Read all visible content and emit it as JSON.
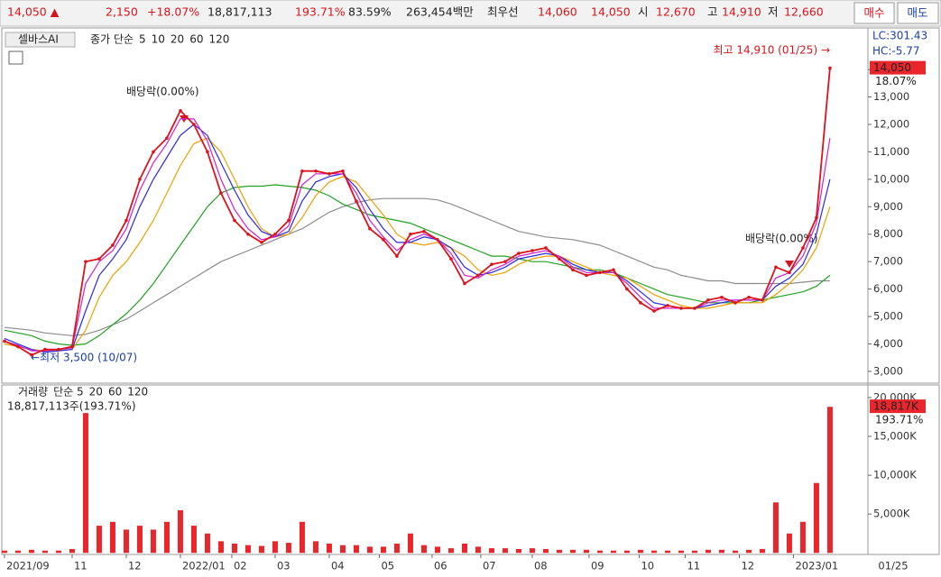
{
  "header": {
    "price": "14,050 ▲",
    "change": "2,150",
    "change_pct": "+18.07%",
    "volume": "18,817,113",
    "volume_ratio": "193.71%",
    "turnover": "83.59%",
    "amount": "263,454백만",
    "best_label": "최우선",
    "ask": "14,060",
    "bid": "14,050",
    "open_label": "시",
    "open": "12,670",
    "high_label": "고",
    "high": "14,910",
    "low_label": "저",
    "low": "12,660",
    "buy": "매수",
    "sell": "매도"
  },
  "chart_data": [
    {
      "type": "line",
      "name": "셀바스AI",
      "legend_prefix": "종가 단순",
      "color": "#d9141c",
      "xlim": [
        -0.13,
        63.67
      ],
      "ylim": [
        2570,
        15450
      ],
      "yticks": [
        {
          "value": 3000,
          "label": "3,000"
        },
        {
          "value": 4000,
          "label": "4,000"
        },
        {
          "value": 5000,
          "label": "5,000"
        },
        {
          "value": 6000,
          "label": "6,000"
        },
        {
          "value": 7000,
          "label": "7,000"
        },
        {
          "value": 8000,
          "label": "8,000"
        },
        {
          "value": 9000,
          "label": "9,000"
        },
        {
          "value": 10000,
          "label": "10,000"
        },
        {
          "value": 11000,
          "label": "11,000"
        },
        {
          "value": 12000,
          "label": "12,000"
        },
        {
          "value": 13000,
          "label": "13,000"
        },
        {
          "value": 14000,
          "label": "14,000"
        }
      ],
      "x": [
        0,
        1,
        2,
        3,
        4,
        5,
        6,
        7,
        8,
        9,
        10,
        11,
        12,
        13,
        14,
        15,
        16,
        17,
        18,
        19,
        20,
        21,
        22,
        23,
        24,
        25,
        26,
        27,
        28,
        29,
        30,
        31,
        32,
        33,
        34,
        35,
        36,
        37,
        38,
        39,
        40,
        41,
        42,
        43,
        44,
        45,
        46,
        47,
        48,
        49,
        50,
        51,
        52,
        53,
        54,
        55,
        56,
        57,
        58,
        59,
        60,
        61
      ],
      "values": [
        4100,
        3900,
        3600,
        3800,
        3800,
        3900,
        7000,
        7100,
        7600,
        8500,
        10000,
        11000,
        11500,
        12500,
        12000,
        11000,
        9500,
        8500,
        8000,
        7700,
        8000,
        8500,
        10300,
        10300,
        10200,
        10300,
        9200,
        8200,
        7800,
        7200,
        8000,
        8100,
        7800,
        7100,
        6200,
        6500,
        6900,
        7000,
        7300,
        7400,
        7500,
        7100,
        6700,
        6500,
        6600,
        6700,
        6000,
        5500,
        5200,
        5400,
        5300,
        5300,
        5600,
        5700,
        5500,
        5700,
        5600,
        6800,
        6600,
        7500,
        8600,
        14050
      ],
      "series": [
        {
          "name": "5",
          "color": "#d61fd0",
          "values": [
            4100,
            3950,
            3750,
            3750,
            3800,
            3850,
            6200,
            7000,
            7400,
            8200,
            9600,
            10600,
            11300,
            12200,
            12200,
            11400,
            10000,
            8900,
            8200,
            7800,
            7900,
            8300,
            9800,
            10200,
            10200,
            10200,
            9500,
            8500,
            7900,
            7400,
            7800,
            8000,
            7800,
            7300,
            6500,
            6400,
            6700,
            6900,
            7200,
            7300,
            7400,
            7200,
            6800,
            6600,
            6600,
            6600,
            6200,
            5700,
            5300,
            5300,
            5300,
            5300,
            5500,
            5600,
            5600,
            5600,
            5600,
            6400,
            6600,
            7200,
            8400,
            11500
          ]
        },
        {
          "name": "10",
          "color": "#2a2ae0",
          "values": [
            4200,
            4000,
            3800,
            3700,
            3750,
            3800,
            5200,
            6500,
            7100,
            7800,
            9000,
            10000,
            10800,
            11600,
            12000,
            11600,
            10600,
            9600,
            8700,
            8100,
            7900,
            8100,
            9200,
            9900,
            10100,
            10200,
            9700,
            8900,
            8200,
            7700,
            7700,
            7900,
            7800,
            7500,
            6800,
            6500,
            6600,
            6800,
            7100,
            7200,
            7300,
            7200,
            6900,
            6700,
            6600,
            6600,
            6300,
            5900,
            5500,
            5400,
            5300,
            5300,
            5400,
            5500,
            5600,
            5600,
            5600,
            6100,
            6400,
            6900,
            8000,
            10000
          ]
        },
        {
          "name": "20",
          "color": "#f0a000",
          "values": [
            4000,
            3900,
            3800,
            3750,
            3750,
            3800,
            4500,
            5700,
            6500,
            7000,
            7700,
            8500,
            9500,
            10500,
            11300,
            11500,
            11000,
            10000,
            9000,
            8200,
            7900,
            8000,
            8600,
            9400,
            9900,
            10100,
            9900,
            9300,
            8700,
            8000,
            7700,
            7600,
            7700,
            7500,
            7200,
            6700,
            6500,
            6600,
            6900,
            7100,
            7200,
            7200,
            7000,
            6800,
            6600,
            6500,
            6400,
            6100,
            5800,
            5600,
            5400,
            5300,
            5300,
            5400,
            5500,
            5500,
            5500,
            5800,
            6200,
            6700,
            7500,
            9000
          ]
        },
        {
          "name": "60",
          "color": "#22a022",
          "values": [
            4500,
            4400,
            4300,
            4100,
            4000,
            3950,
            4000,
            4300,
            4700,
            5100,
            5600,
            6200,
            6900,
            7600,
            8300,
            9000,
            9500,
            9700,
            9750,
            9750,
            9800,
            9750,
            9700,
            9600,
            9400,
            9100,
            8900,
            8700,
            8600,
            8500,
            8400,
            8200,
            8000,
            7800,
            7600,
            7400,
            7200,
            7200,
            7100,
            7000,
            7000,
            6900,
            6800,
            6700,
            6700,
            6600,
            6400,
            6200,
            6000,
            5800,
            5700,
            5600,
            5500,
            5500,
            5500,
            5500,
            5600,
            5700,
            5800,
            5900,
            6100,
            6500
          ]
        },
        {
          "name": "120",
          "color": "#8c8c8c",
          "values": [
            4600,
            4550,
            4500,
            4400,
            4350,
            4300,
            4350,
            4500,
            4700,
            4900,
            5200,
            5500,
            5800,
            6100,
            6400,
            6700,
            7000,
            7200,
            7400,
            7600,
            7800,
            8000,
            8200,
            8500,
            8800,
            9000,
            9150,
            9250,
            9300,
            9300,
            9300,
            9300,
            9250,
            9100,
            8900,
            8700,
            8500,
            8300,
            8100,
            8000,
            7900,
            7850,
            7800,
            7700,
            7600,
            7400,
            7200,
            7000,
            6800,
            6700,
            6500,
            6400,
            6300,
            6300,
            6200,
            6200,
            6200,
            6200,
            6200,
            6250,
            6300,
            6300
          ]
        }
      ],
      "annotations": [
        "배당락(0.00%)",
        "배당락(0.00%)",
        "최고 14,910 (01/25) →",
        "←최저 3,500 (10/07)"
      ],
      "lc": "LC:301.43",
      "hc": "HC:-5.77",
      "last": {
        "value": 14050,
        "label": "14,050"
      },
      "last_change": "18.07%"
    },
    {
      "type": "bar",
      "color": "#e8262b",
      "info": "18,817,113주(193.71%)",
      "legend": [
        {
          "label": "거래량",
          "color": "#3a6fd8"
        },
        {
          "label": "단순 5",
          "color": "#d61fd0"
        },
        {
          "label": "20",
          "color": "#f0a000"
        },
        {
          "label": "60",
          "color": "#22a022"
        },
        {
          "label": "120",
          "color": "#8c8c8c"
        }
      ],
      "xlim": [
        -0.13,
        63.67
      ],
      "ylim": [
        -200,
        21500
      ],
      "yticks": [
        {
          "value": 5000,
          "label": "5,000K"
        },
        {
          "value": 10000,
          "label": "10,000K"
        },
        {
          "value": 15000,
          "label": "15,000K"
        },
        {
          "value": 20000,
          "label": "20,000K"
        }
      ],
      "x": [
        0,
        1,
        2,
        3,
        4,
        5,
        6,
        7,
        8,
        9,
        10,
        11,
        12,
        13,
        14,
        15,
        16,
        17,
        18,
        19,
        20,
        21,
        22,
        23,
        24,
        25,
        26,
        27,
        28,
        29,
        30,
        31,
        32,
        33,
        34,
        35,
        36,
        37,
        38,
        39,
        40,
        41,
        42,
        43,
        44,
        45,
        46,
        47,
        48,
        49,
        50,
        51,
        52,
        53,
        54,
        55,
        56,
        57,
        58,
        59,
        60,
        61
      ],
      "values": [
        300,
        300,
        400,
        300,
        300,
        500,
        18000,
        3500,
        4000,
        3000,
        3500,
        3000,
        4000,
        5500,
        3500,
        2500,
        1500,
        1200,
        1000,
        900,
        1500,
        1300,
        4000,
        1500,
        1200,
        1000,
        1000,
        800,
        800,
        1200,
        2500,
        1000,
        800,
        600,
        1200,
        800,
        600,
        600,
        500,
        600,
        500,
        400,
        400,
        400,
        300,
        300,
        300,
        400,
        300,
        300,
        300,
        300,
        400,
        400,
        300,
        400,
        500,
        6500,
        2500,
        4000,
        9000,
        18800
      ],
      "last": {
        "value": 18817,
        "label": "18,817K"
      },
      "last_ratio": "193.71%",
      "xticks": [
        {
          "value": 0,
          "label": "2021/09"
        },
        {
          "value": 5,
          "label": "11"
        },
        {
          "value": 9,
          "label": "12"
        },
        {
          "value": 13,
          "label": "2022/01"
        },
        {
          "value": 16.8,
          "label": "02"
        },
        {
          "value": 20,
          "label": "03"
        },
        {
          "value": 24,
          "label": "04"
        },
        {
          "value": 27.7,
          "label": "05"
        },
        {
          "value": 31.6,
          "label": "06"
        },
        {
          "value": 35.2,
          "label": "07"
        },
        {
          "value": 39,
          "label": "08"
        },
        {
          "value": 43.2,
          "label": "09"
        },
        {
          "value": 46.9,
          "label": "10"
        },
        {
          "value": 50.3,
          "label": "11"
        },
        {
          "value": 54.3,
          "label": "12"
        },
        {
          "value": 58.3,
          "label": "2023/01"
        }
      ],
      "last_date": "01/25"
    }
  ]
}
